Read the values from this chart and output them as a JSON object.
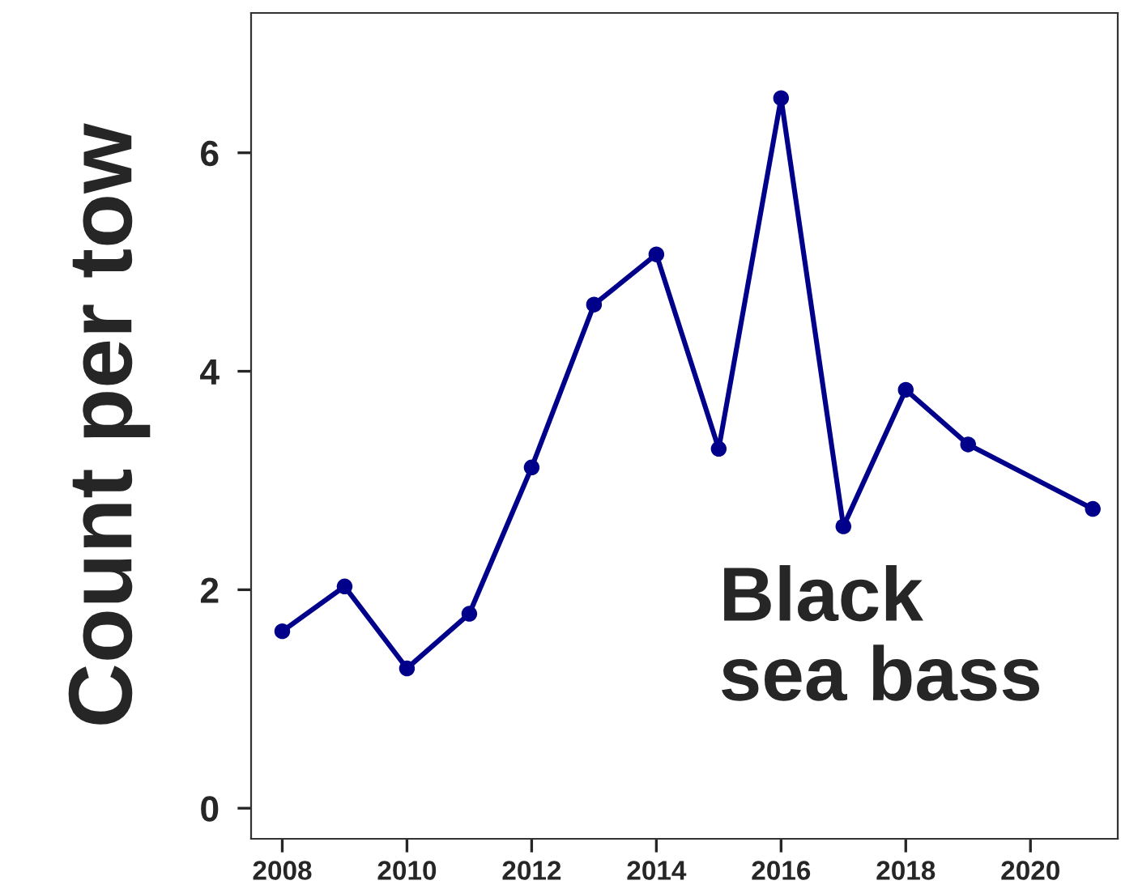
{
  "chart_data": {
    "type": "line",
    "ylabel": "Count per tow",
    "annotations": [
      "Black\nsea bass"
    ],
    "x": [
      2008,
      2009,
      2010,
      2011,
      2012,
      2013,
      2014,
      2015,
      2016,
      2017,
      2018,
      2019,
      2021
    ],
    "series": [
      {
        "color": "#00008b",
        "values": [
          1.62,
          2.03,
          1.28,
          1.78,
          3.12,
          4.61,
          5.07,
          3.29,
          6.5,
          2.58,
          3.83,
          3.33,
          2.74
        ]
      }
    ],
    "xlim": [
      2007.5,
      2021.4
    ],
    "xticks": [
      2008,
      2010,
      2012,
      2014,
      2016,
      2018,
      2020
    ],
    "ylim": [
      -0.28,
      7.28
    ],
    "yticks": [
      0,
      2,
      4,
      6
    ],
    "grid": false,
    "marker": "circle",
    "line_style": "solid"
  }
}
